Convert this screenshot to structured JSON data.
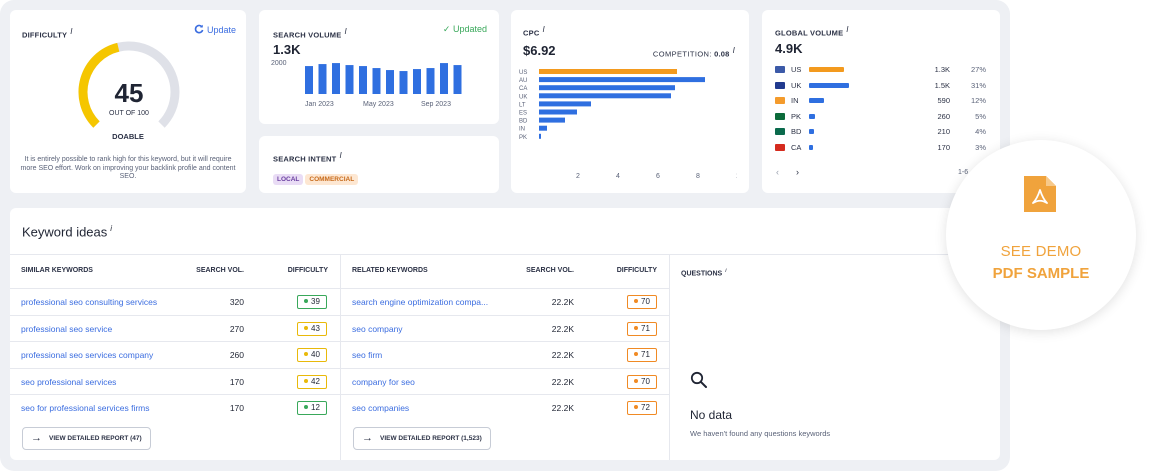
{
  "difficulty": {
    "label": "DIFFICULTY",
    "info": "i",
    "update_label": "Update",
    "value": "45",
    "out_of": "OUT OF 100",
    "word": "DOABLE",
    "description": "It is entirely possible to rank high for this keyword, but it will require more SEO effort. Work on improving your backlink profile and content SEO.",
    "gauge_fraction": 0.45,
    "gauge_color": "#f5c600",
    "gauge_track": "#dfe1e8"
  },
  "search_volume": {
    "label": "SEARCH VOLUME",
    "info": "i",
    "status": "✓ Updated",
    "value": "1.3K",
    "y_tick": "2000",
    "x_ticks": [
      "Jan 2023",
      "May 2023",
      "Sep 2023"
    ],
    "bar_color": "#2f6fe0",
    "bars": [
      1400,
      1500,
      1550,
      1450,
      1400,
      1300,
      1200,
      1150,
      1250,
      1300,
      1550,
      1450
    ]
  },
  "intent": {
    "label": "SEARCH INTENT",
    "info": "i",
    "tags": [
      {
        "text": "LOCAL",
        "bg": "#e9dcf5",
        "fg": "#6a3fa0"
      },
      {
        "text": "COMMERCIAL",
        "bg": "#fde7d2",
        "fg": "#c76a1a"
      }
    ]
  },
  "cpc": {
    "label": "CPC",
    "info": "i",
    "value": "$6.92",
    "competition_label": "COMPETITION:",
    "competition_value": "0.08",
    "chart_data": {
      "type": "bar",
      "orientation": "horizontal",
      "categories": [
        "US",
        "AU",
        "CA",
        "UK",
        "LT",
        "ES",
        "BD",
        "IN",
        "PK"
      ],
      "values": [
        6.9,
        8.3,
        6.8,
        6.6,
        2.6,
        1.9,
        1.3,
        0.4,
        0.1
      ],
      "highlight_color": "#f39a1e",
      "bar_color": "#2f6fe0",
      "x_ticks": [
        "2",
        "4",
        "6",
        "8",
        "10"
      ],
      "xlim": [
        0,
        10
      ]
    }
  },
  "global": {
    "label": "GLOBAL VOLUME",
    "info": "i",
    "value": "4.9K",
    "rows": [
      {
        "code": "US",
        "value": "1.3K",
        "pct": "27%",
        "share": 0.27,
        "bar_color": "#f39a1e",
        "flag": "#3c5aa8"
      },
      {
        "code": "UK",
        "value": "1.5K",
        "pct": "31%",
        "share": 0.31,
        "bar_color": "#2f6fe0",
        "flag": "#213a8f"
      },
      {
        "code": "IN",
        "value": "590",
        "pct": "12%",
        "share": 0.12,
        "bar_color": "#2f6fe0",
        "flag": "#f49b2c"
      },
      {
        "code": "PK",
        "value": "260",
        "pct": "5%",
        "share": 0.05,
        "bar_color": "#2f6fe0",
        "flag": "#0b6b3a"
      },
      {
        "code": "BD",
        "value": "210",
        "pct": "4%",
        "share": 0.04,
        "bar_color": "#2f6fe0",
        "flag": "#0a6a4c"
      },
      {
        "code": "CA",
        "value": "170",
        "pct": "3%",
        "share": 0.03,
        "bar_color": "#2f6fe0",
        "flag": "#d52b1e"
      }
    ],
    "pager_prev": "‹",
    "pager_next": "›",
    "pager_text": "1-6"
  },
  "keywords": {
    "title": "Keyword ideas",
    "info": "i",
    "similar": {
      "head_kw": "SIMILAR KEYWORDS",
      "head_vol": "SEARCH VOL.",
      "head_diff": "DIFFICULTY",
      "rows": [
        {
          "kw": "professional seo consulting services",
          "vol": "320",
          "diff": "39",
          "color": "#39a85a"
        },
        {
          "kw": "professional seo service",
          "vol": "270",
          "diff": "43",
          "color": "#e9b90a"
        },
        {
          "kw": "professional seo services company",
          "vol": "260",
          "diff": "40",
          "color": "#e9b90a"
        },
        {
          "kw": "seo professional services",
          "vol": "170",
          "diff": "42",
          "color": "#e9b90a"
        },
        {
          "kw": "seo for professional services firms",
          "vol": "170",
          "diff": "12",
          "color": "#39a85a"
        }
      ],
      "button": "VIEW DETAILED REPORT (47)"
    },
    "related": {
      "head_kw": "RELATED KEYWORDS",
      "head_vol": "SEARCH VOL.",
      "head_diff": "DIFFICULTY",
      "rows": [
        {
          "kw": "search engine optimization compa...",
          "vol": "22.2K",
          "diff": "70",
          "color": "#f08a24"
        },
        {
          "kw": "seo company",
          "vol": "22.2K",
          "diff": "71",
          "color": "#f08a24"
        },
        {
          "kw": "seo firm",
          "vol": "22.2K",
          "diff": "71",
          "color": "#f08a24"
        },
        {
          "kw": "company for seo",
          "vol": "22.2K",
          "diff": "70",
          "color": "#f08a24"
        },
        {
          "kw": "seo companies",
          "vol": "22.2K",
          "diff": "72",
          "color": "#f08a24"
        }
      ],
      "button": "VIEW DETAILED REPORT (1,523)"
    },
    "questions": {
      "head": "QUESTIONS",
      "info": "i",
      "empty_title": "No data",
      "empty_sub": "We haven't found any questions keywords"
    }
  },
  "overlay": {
    "line1": "SEE DEMO",
    "line2": "PDF SAMPLE",
    "icon_color": "#f0a33c"
  }
}
